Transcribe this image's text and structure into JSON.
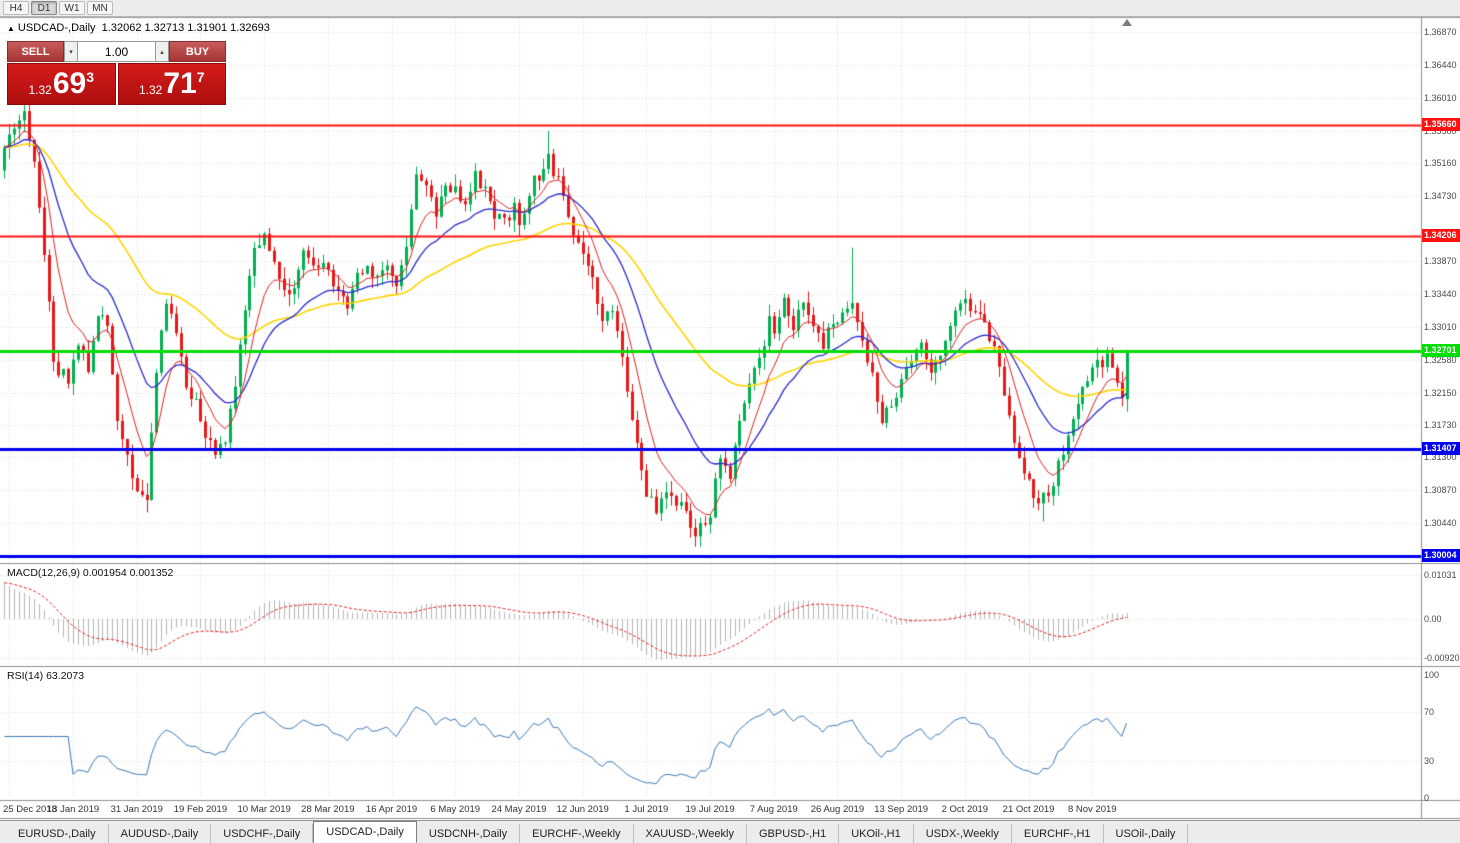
{
  "toolbar": {
    "timeframes": [
      {
        "label": "H4",
        "active": false
      },
      {
        "label": "D1",
        "active": true
      },
      {
        "label": "W1",
        "active": false
      },
      {
        "label": "MN",
        "active": false
      }
    ]
  },
  "chart_header": {
    "collapse_icon": "▲",
    "symbol": "USDCAD-,Daily",
    "ohlc": "1.32062 1.32713 1.31901 1.32693"
  },
  "trade_panel": {
    "sell_label": "SELL",
    "buy_label": "BUY",
    "volume": "1.00",
    "step_down_icon": "▾",
    "step_up_icon": "▴",
    "sell_price": {
      "prefix": "1.32",
      "big": "69",
      "sup": "3"
    },
    "buy_price": {
      "prefix": "1.32",
      "big": "71",
      "sup": "7"
    }
  },
  "indicators": {
    "macd_label": "MACD(12,26,9) 0.001954 0.001352",
    "rsi_label": "RSI(14) 63.2073"
  },
  "tabs": [
    {
      "label": "EURUSD-,Daily",
      "active": false
    },
    {
      "label": "AUDUSD-,Daily",
      "active": false
    },
    {
      "label": "USDCHF-,Daily",
      "active": false
    },
    {
      "label": "USDCAD-,Daily",
      "active": true
    },
    {
      "label": "USDCNH-,Daily",
      "active": false
    },
    {
      "label": "EURCHF-,Weekly",
      "active": false
    },
    {
      "label": "XAUUSD-,Weekly",
      "active": false
    },
    {
      "label": "GBPUSD-,H1",
      "active": false
    },
    {
      "label": "UKOil-,H1",
      "active": false
    },
    {
      "label": "USDX-,Weekly",
      "active": false
    },
    {
      "label": "EURCHF-,H1",
      "active": false
    },
    {
      "label": "USOil-,Daily",
      "active": false
    }
  ],
  "colors": {
    "up": "#00b050",
    "down": "#e61919",
    "ma_fast": "#dd2222",
    "ma_mid": "#2b2bd0",
    "ma_slow": "#ffd400",
    "grid": "#dcdcdc",
    "sep": "#8f8f8f",
    "hist": "#b5b5b5",
    "macd_signal": "#e32222",
    "rsi": "#3a78b5"
  },
  "chart_data": {
    "type": "candlestick",
    "symbol": "USDCAD-",
    "timeframe": "Daily",
    "ohlc_current": {
      "open": 1.32062,
      "high": 1.32713,
      "low": 1.31901,
      "close": 1.32693
    },
    "bars_visible": 230,
    "price_ticks": [
      "1.36870",
      "1.36440",
      "1.36010",
      "1.35580",
      "1.35160",
      "1.34730",
      "1.33870",
      "1.33440",
      "1.33010",
      "1.32580",
      "1.32150",
      "1.31730",
      "1.31300",
      "1.30870",
      "1.30440"
    ],
    "levels": [
      {
        "label": "1.35660",
        "price": 1.3566,
        "color": "#ff1111",
        "width": 2
      },
      {
        "label": "1.34206",
        "price": 1.34206,
        "color": "#ff1111",
        "width": 2
      },
      {
        "label": "1.32701",
        "price": 1.32701,
        "color": "#00dd00",
        "width": 3
      },
      {
        "label": "1.31407",
        "price": 1.31407,
        "color": "#0000ee",
        "width": 3
      },
      {
        "label": "1.30004",
        "price": 1.30004,
        "color": "#0000ee",
        "width": 3
      }
    ],
    "date_labels": [
      {
        "text": "25 Dec 2018",
        "bar": 1
      },
      {
        "text": "13 Jan 2019",
        "bar": 14
      },
      {
        "text": "31 Jan 2019",
        "bar": 27
      },
      {
        "text": "19 Feb 2019",
        "bar": 40
      },
      {
        "text": "10 Mar 2019",
        "bar": 53
      },
      {
        "text": "28 Mar 2019",
        "bar": 66
      },
      {
        "text": "16 Apr 2019",
        "bar": 79
      },
      {
        "text": "6 May 2019",
        "bar": 92
      },
      {
        "text": "24 May 2019",
        "bar": 105
      },
      {
        "text": "12 Jun 2019",
        "bar": 118
      },
      {
        "text": "1 Jul 2019",
        "bar": 131
      },
      {
        "text": "19 Jul 2019",
        "bar": 144
      },
      {
        "text": "7 Aug 2019",
        "bar": 157
      },
      {
        "text": "26 Aug 2019",
        "bar": 170
      },
      {
        "text": "13 Sep 2019",
        "bar": 183
      },
      {
        "text": "2 Oct 2019",
        "bar": 196
      },
      {
        "text": "21 Oct 2019",
        "bar": 209
      },
      {
        "text": "8 Nov 2019",
        "bar": 222
      }
    ],
    "close_keypoints": [
      [
        0,
        1.353
      ],
      [
        2,
        1.3565
      ],
      [
        4,
        1.3585
      ],
      [
        6,
        1.351
      ],
      [
        8,
        1.34
      ],
      [
        10,
        1.325
      ],
      [
        13,
        1.323
      ],
      [
        15,
        1.328
      ],
      [
        17,
        1.325
      ],
      [
        19,
        1.332
      ],
      [
        21,
        1.33
      ],
      [
        23,
        1.318
      ],
      [
        25,
        1.313
      ],
      [
        27,
        1.309
      ],
      [
        29,
        1.3075
      ],
      [
        31,
        1.325
      ],
      [
        33,
        1.333
      ],
      [
        35,
        1.329
      ],
      [
        37,
        1.322
      ],
      [
        39,
        1.32
      ],
      [
        41,
        1.316
      ],
      [
        43,
        1.313
      ],
      [
        45,
        1.315
      ],
      [
        47,
        1.322
      ],
      [
        49,
        1.332
      ],
      [
        51,
        1.34
      ],
      [
        53,
        1.343
      ],
      [
        55,
        1.338
      ],
      [
        57,
        1.334
      ],
      [
        59,
        1.336
      ],
      [
        61,
        1.34
      ],
      [
        63,
        1.338
      ],
      [
        66,
        1.338
      ],
      [
        68,
        1.334
      ],
      [
        70,
        1.333
      ],
      [
        72,
        1.337
      ],
      [
        74,
        1.339
      ],
      [
        76,
        1.336
      ],
      [
        78,
        1.338
      ],
      [
        80,
        1.336
      ],
      [
        82,
        1.34
      ],
      [
        84,
        1.35
      ],
      [
        86,
        1.348
      ],
      [
        88,
        1.345
      ],
      [
        90,
        1.348
      ],
      [
        92,
        1.349
      ],
      [
        94,
        1.346
      ],
      [
        96,
        1.35
      ],
      [
        98,
        1.348
      ],
      [
        100,
        1.345
      ],
      [
        102,
        1.344
      ],
      [
        104,
        1.346
      ],
      [
        105,
        1.343
      ],
      [
        107,
        1.348
      ],
      [
        109,
        1.35
      ],
      [
        111,
        1.352
      ],
      [
        113,
        1.349
      ],
      [
        115,
        1.344
      ],
      [
        118,
        1.34
      ],
      [
        120,
        1.336
      ],
      [
        122,
        1.331
      ],
      [
        124,
        1.333
      ],
      [
        126,
        1.327
      ],
      [
        128,
        1.318
      ],
      [
        130,
        1.311
      ],
      [
        131,
        1.308
      ],
      [
        133,
        1.306
      ],
      [
        135,
        1.309
      ],
      [
        137,
        1.307
      ],
      [
        139,
        1.306
      ],
      [
        141,
        1.303
      ],
      [
        143,
        1.3045
      ],
      [
        144,
        1.306
      ],
      [
        146,
        1.313
      ],
      [
        148,
        1.311
      ],
      [
        150,
        1.317
      ],
      [
        152,
        1.322
      ],
      [
        154,
        1.326
      ],
      [
        156,
        1.331
      ],
      [
        157,
        1.329
      ],
      [
        159,
        1.333
      ],
      [
        161,
        1.33
      ],
      [
        163,
        1.333
      ],
      [
        165,
        1.331
      ],
      [
        167,
        1.328
      ],
      [
        169,
        1.331
      ],
      [
        171,
        1.332
      ],
      [
        173,
        1.333
      ],
      [
        175,
        1.328
      ],
      [
        177,
        1.324
      ],
      [
        179,
        1.318
      ],
      [
        181,
        1.32
      ],
      [
        183,
        1.323
      ],
      [
        185,
        1.326
      ],
      [
        187,
        1.328
      ],
      [
        189,
        1.325
      ],
      [
        191,
        1.327
      ],
      [
        193,
        1.33
      ],
      [
        195,
        1.334
      ],
      [
        197,
        1.333
      ],
      [
        199,
        1.331
      ],
      [
        201,
        1.329
      ],
      [
        203,
        1.325
      ],
      [
        205,
        1.318
      ],
      [
        207,
        1.313
      ],
      [
        209,
        1.31
      ],
      [
        211,
        1.307
      ],
      [
        213,
        1.308
      ],
      [
        215,
        1.312
      ],
      [
        217,
        1.316
      ],
      [
        219,
        1.32
      ],
      [
        221,
        1.323
      ],
      [
        223,
        1.325
      ],
      [
        225,
        1.326
      ],
      [
        227,
        1.322
      ],
      [
        228,
        1.3205
      ],
      [
        229,
        1.32693
      ]
    ],
    "wick_overrides": [
      {
        "bar": 4,
        "high": 1.3593
      },
      {
        "bar": 29,
        "low": 1.3058
      },
      {
        "bar": 111,
        "high": 1.3558
      },
      {
        "bar": 141,
        "low": 1.3013
      },
      {
        "bar": 173,
        "high": 1.3405
      },
      {
        "bar": 212,
        "low": 1.3046
      }
    ],
    "moving_averages": [
      {
        "period": 55,
        "color": "#ffd400"
      },
      {
        "period": 21,
        "color": "#2b2bd0"
      },
      {
        "period": 8,
        "color": "#dd2222"
      }
    ],
    "macd": {
      "fast": 12,
      "slow": 26,
      "signal": 9,
      "value": 0.001954,
      "signal_value": 0.001352,
      "axis": [
        {
          "text": "0.01031",
          "v": 0.01031
        },
        {
          "text": "0.00",
          "v": 0
        },
        {
          "text": "-0.00920",
          "v": -0.0092
        }
      ]
    },
    "rsi": {
      "period": 14,
      "value": 63.2073,
      "axis": [
        {
          "text": "100",
          "v": 100
        },
        {
          "text": "70",
          "v": 70
        },
        {
          "text": "30",
          "v": 30
        },
        {
          "text": "0",
          "v": 0
        }
      ],
      "levels": [
        70,
        30
      ]
    }
  }
}
